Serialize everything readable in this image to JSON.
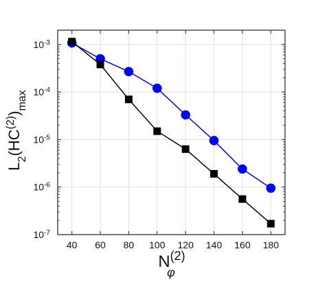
{
  "chart_data": {
    "type": "line",
    "title": "",
    "xlabel": {
      "base": "N",
      "sub": "φ",
      "sup": "(2)"
    },
    "ylabel": {
      "text": "L",
      "sub1": "2",
      "text2": "(HC",
      "sup": "(2)",
      "text3": ")",
      "sub2": "max"
    },
    "x_scale": "linear",
    "y_scale": "log",
    "xlim": [
      30,
      190
    ],
    "ylim": [
      1e-07,
      0.002
    ],
    "x_ticks": [
      40,
      60,
      80,
      100,
      120,
      140,
      160,
      180
    ],
    "x_tick_labels": [
      "40",
      "60",
      "80",
      "100",
      "120",
      "140",
      "160",
      "180"
    ],
    "y_ticks": [
      {
        "value": 1e-07,
        "base": "10",
        "exp": "-7"
      },
      {
        "value": 1e-06,
        "base": "10",
        "exp": "-6"
      },
      {
        "value": 1e-05,
        "base": "10",
        "exp": "-5"
      },
      {
        "value": 0.0001,
        "base": "10",
        "exp": "-4"
      },
      {
        "value": 0.001,
        "base": "10",
        "exp": "-3"
      }
    ],
    "grid": true,
    "legend": null,
    "series": [
      {
        "color": "#0000ff",
        "marker": "circle",
        "x": [
          40,
          60,
          80,
          100,
          120,
          140,
          160,
          180
        ],
        "values": [
          0.00108,
          0.0005,
          0.00027,
          0.00012,
          3.3e-05,
          9.5e-06,
          2.4e-06,
          9.5e-07
        ]
      },
      {
        "color": "#000000",
        "marker": "square",
        "x": [
          40,
          60,
          80,
          100,
          120,
          140,
          160,
          180
        ],
        "values": [
          0.00115,
          0.00038,
          7e-05,
          1.5e-05,
          6.3e-06,
          1.9e-06,
          5.6e-07,
          1.7e-07
        ]
      }
    ]
  }
}
